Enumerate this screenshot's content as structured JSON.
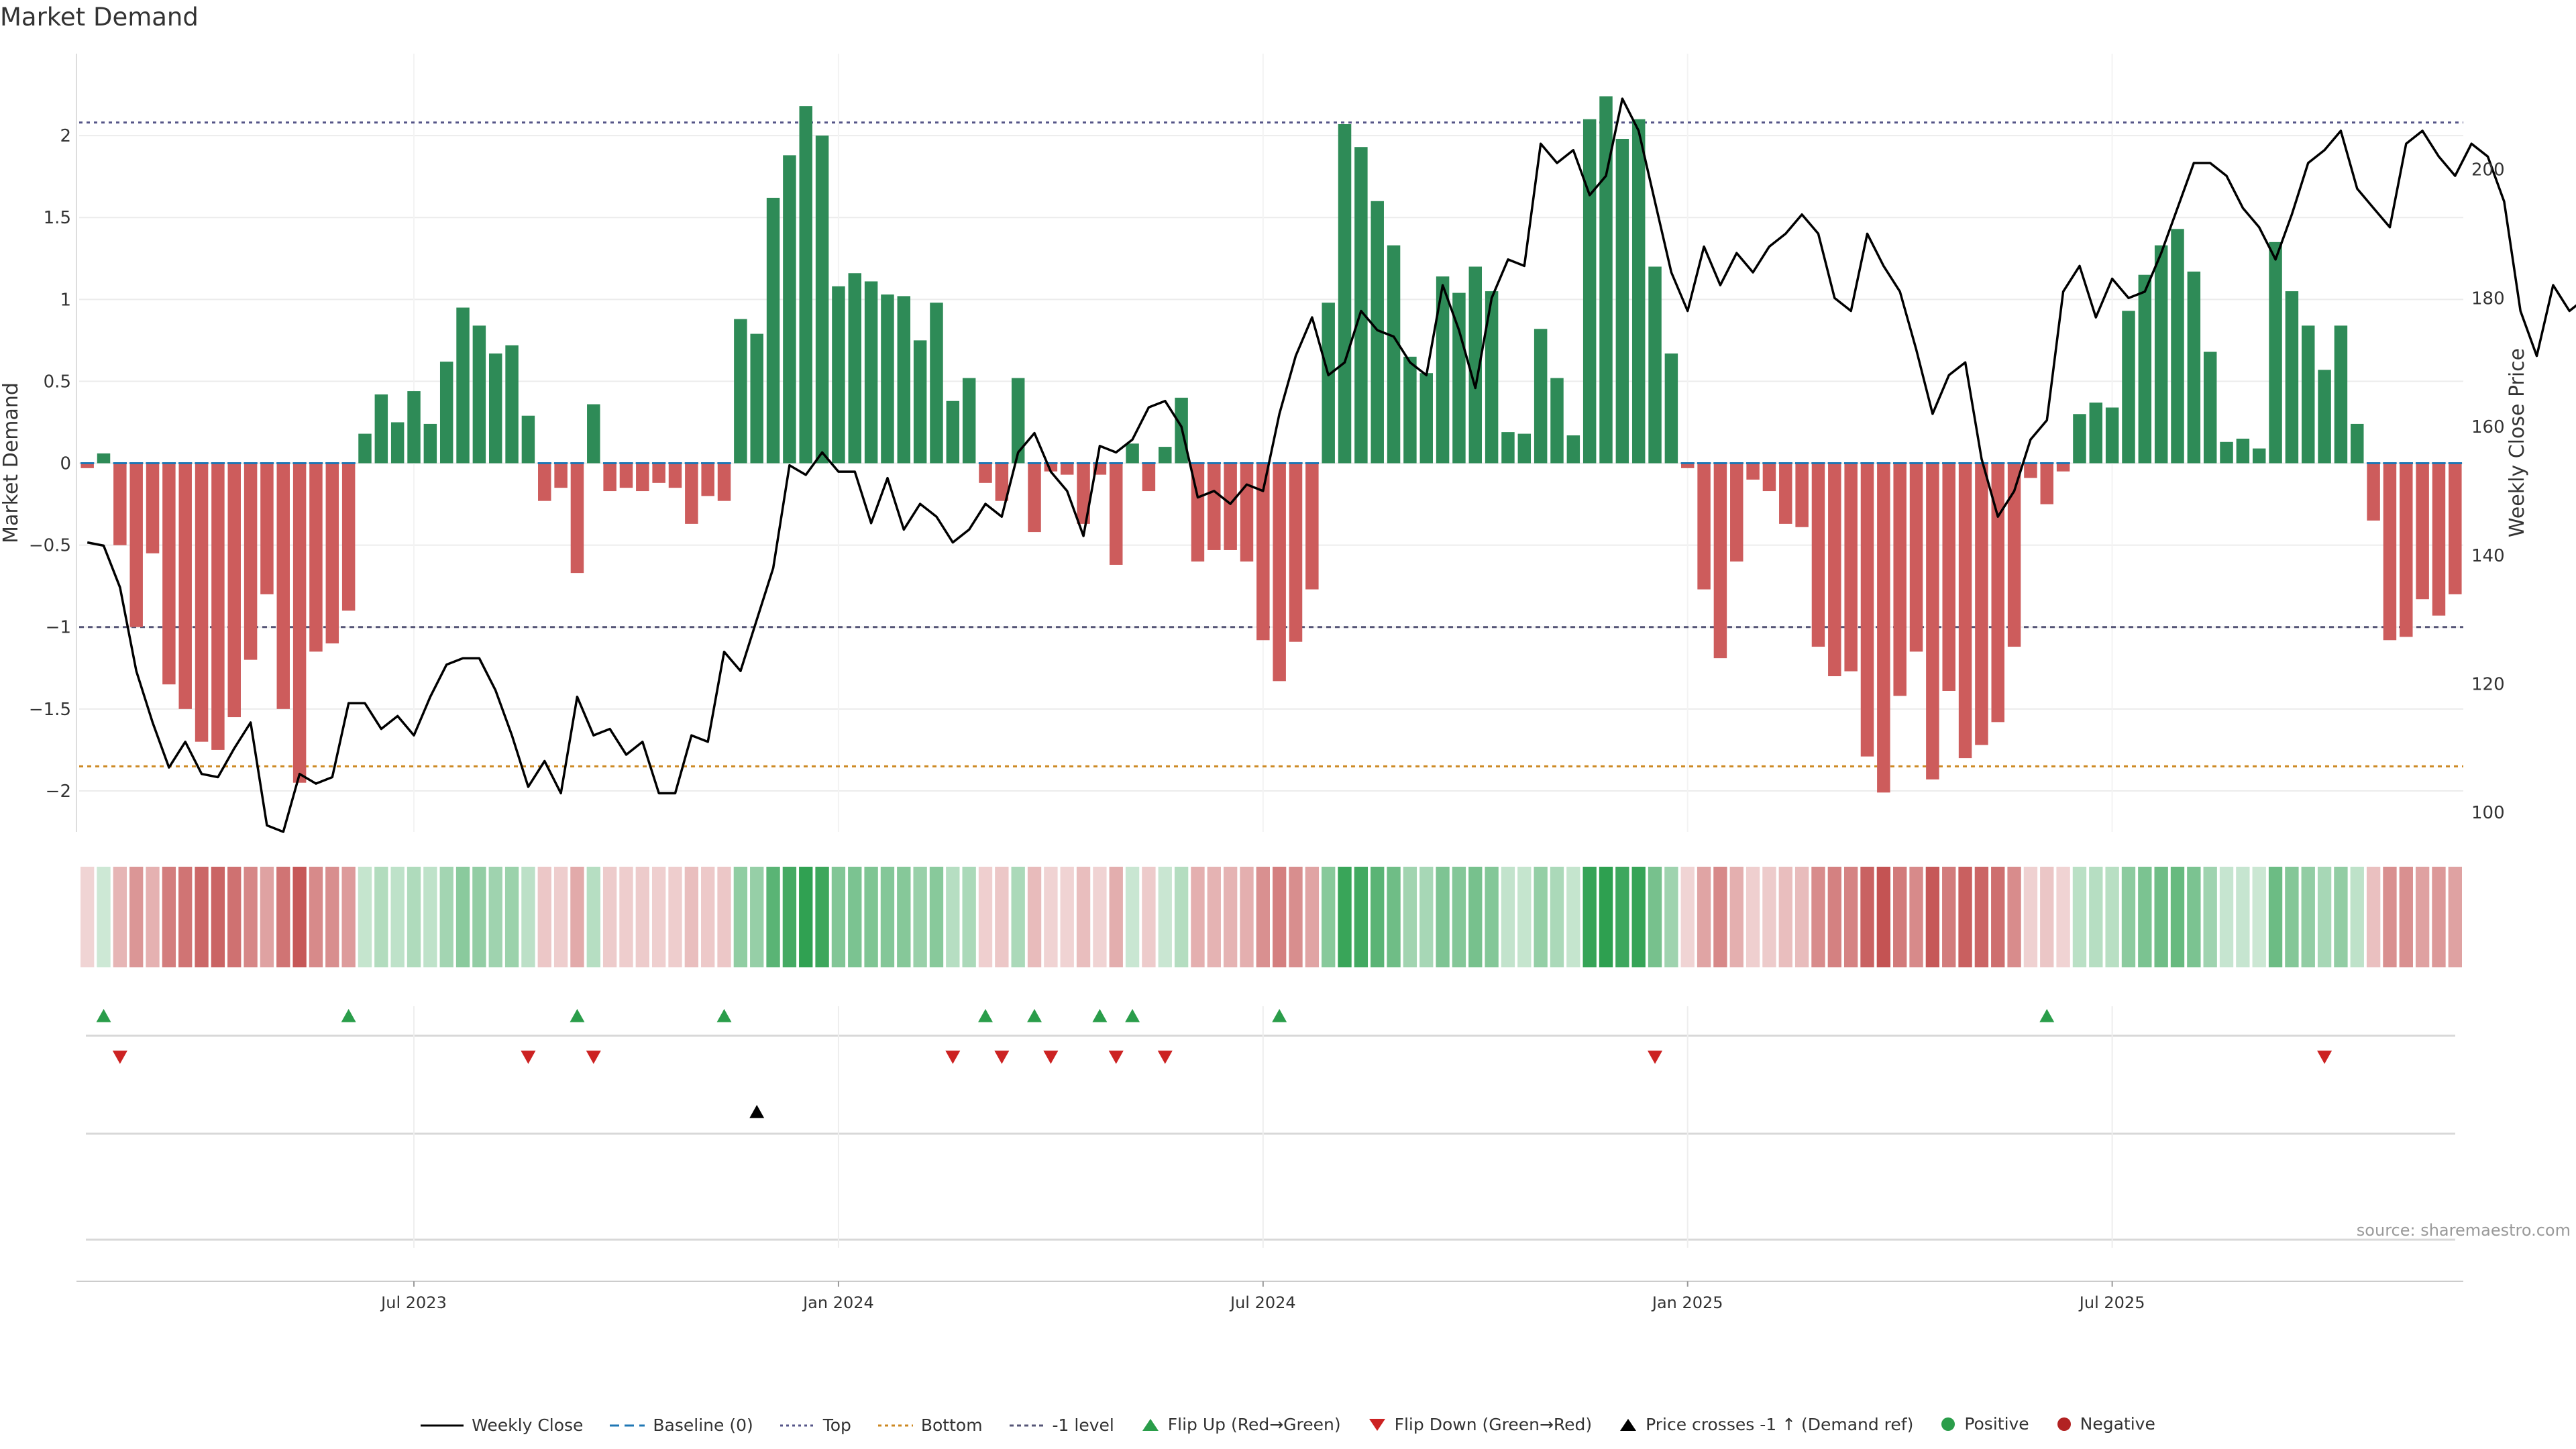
{
  "chart_data": {
    "type": "bar",
    "title": "Market Demand",
    "ylabel": "Market Demand",
    "y2label": "Weekly Close Price",
    "ylim": [
      -2.25,
      2.5
    ],
    "y2lim": [
      97,
      218
    ],
    "yticks": [
      {
        "v": 2,
        "t": "2"
      },
      {
        "v": 1.5,
        "t": "1.5"
      },
      {
        "v": 1,
        "t": "1"
      },
      {
        "v": 0.5,
        "t": "0.5"
      },
      {
        "v": 0,
        "t": "0"
      },
      {
        "v": -0.5,
        "t": "−0.5"
      },
      {
        "v": -1,
        "t": "−1"
      },
      {
        "v": -1.5,
        "t": "−1.5"
      },
      {
        "v": -2,
        "t": "−2"
      }
    ],
    "y2ticks": [
      {
        "v": 200,
        "t": "200"
      },
      {
        "v": 180,
        "t": "180"
      },
      {
        "v": 160,
        "t": "160"
      },
      {
        "v": 140,
        "t": "140"
      },
      {
        "v": 120,
        "t": "120"
      },
      {
        "v": 100,
        "t": "100"
      }
    ],
    "levels": {
      "top": 2.08,
      "bottom": -1.85,
      "minus_one": -1
    },
    "xticks": [
      {
        "i": 20.5,
        "t": "Jul 2023"
      },
      {
        "i": 46.5,
        "t": "Jan 2024"
      },
      {
        "i": 72.5,
        "t": "Jul 2024"
      },
      {
        "i": 98.5,
        "t": "Jan 2025"
      },
      {
        "i": 124.5,
        "t": "Jul 2025"
      }
    ],
    "demand": [
      -0.03,
      0.06,
      -0.5,
      -1,
      -0.55,
      -1.35,
      -1.5,
      -1.7,
      -1.75,
      -1.55,
      -1.2,
      -0.8,
      -1.5,
      -1.95,
      -1.15,
      -1.1,
      -0.9,
      0.18,
      0.42,
      0.25,
      0.44,
      0.24,
      0.62,
      0.95,
      0.84,
      0.67,
      0.72,
      0.29,
      -0.23,
      -0.15,
      -0.67,
      0.36,
      -0.17,
      -0.15,
      -0.17,
      -0.12,
      -0.15,
      -0.37,
      -0.2,
      -0.23,
      0.88,
      0.79,
      1.62,
      1.88,
      2.18,
      2.0,
      1.08,
      1.16,
      1.11,
      1.03,
      1.02,
      0.75,
      0.98,
      0.38,
      0.52,
      -0.12,
      -0.23,
      0.52,
      -0.42,
      -0.05,
      -0.07,
      -0.37,
      -0.07,
      -0.62,
      0.12,
      -0.17,
      0.1,
      0.4,
      -0.6,
      -0.53,
      -0.53,
      -0.6,
      -1.08,
      -1.33,
      -1.09,
      -0.77,
      0.98,
      2.07,
      1.93,
      1.6,
      1.33,
      0.65,
      0.55,
      1.14,
      1.04,
      1.2,
      1.05,
      0.19,
      0.18,
      0.82,
      0.52,
      0.17,
      2.1,
      2.24,
      1.98,
      2.1,
      1.2,
      0.67,
      -0.03,
      -0.77,
      -1.19,
      -0.6,
      -0.1,
      -0.17,
      -0.37,
      -0.39,
      -1.12,
      -1.3,
      -1.27,
      -1.79,
      -2.01,
      -1.42,
      -1.15,
      -1.93,
      -1.39,
      -1.8,
      -1.72,
      -1.58,
      -1.12,
      -0.09,
      -0.25,
      -0.05,
      0.3,
      0.37,
      0.34,
      0.93,
      1.15,
      1.33,
      1.43,
      1.17,
      0.68,
      0.13,
      0.15,
      0.09,
      1.35,
      1.05,
      0.84,
      0.57,
      0.84,
      0.24,
      -0.35,
      -1.08,
      -1.06,
      -0.83,
      -0.93,
      -0.8
    ],
    "price": [
      142,
      141.5,
      135,
      122,
      114,
      107,
      111,
      106,
      105.5,
      110,
      114,
      98,
      97,
      106,
      104.5,
      105.5,
      117,
      117,
      113,
      115,
      112,
      118,
      123,
      124,
      124,
      119,
      112,
      104,
      108,
      103,
      118,
      112,
      113,
      109,
      111,
      103,
      103,
      112,
      111,
      125,
      122,
      130,
      138,
      154,
      152.5,
      156,
      153,
      153,
      145,
      152,
      144,
      148,
      146,
      142,
      144,
      148,
      146,
      156,
      159,
      153,
      150,
      143,
      157,
      156,
      158,
      163,
      164,
      160,
      149,
      150,
      148,
      151,
      150,
      162,
      171,
      177,
      168,
      170,
      178,
      175,
      174,
      170,
      168,
      182,
      175,
      166,
      180,
      186,
      185,
      204,
      201,
      203,
      196,
      199,
      211,
      206,
      195,
      184,
      178,
      188,
      182,
      187,
      184,
      188,
      190,
      193,
      190,
      180,
      178,
      190,
      185,
      181,
      172,
      162,
      168,
      170,
      155,
      146,
      150,
      158,
      161,
      181,
      185,
      177,
      183,
      180,
      181,
      187,
      194,
      201,
      201,
      199,
      194,
      191,
      186,
      193,
      201,
      203,
      206,
      197,
      194,
      191,
      204,
      206,
      202,
      199,
      204,
      202,
      195,
      178,
      171,
      182,
      178,
      180
    ],
    "flip_up": [
      1,
      16,
      30,
      39,
      55,
      58,
      62,
      64,
      73,
      120
    ],
    "flip_down": [
      2,
      27,
      31,
      53,
      56,
      59,
      63,
      66,
      96,
      137
    ],
    "cross": [
      41
    ],
    "source": "source: sharemaestro.com"
  },
  "legend": {
    "weekly_close": "Weekly Close",
    "baseline": "Baseline (0)",
    "top": "Top",
    "bottom": "Bottom",
    "minus_one": "-1 level",
    "flip_up": "Flip Up (Red→Green)",
    "flip_down": "Flip Down (Green→Red)",
    "price_cross": "Price crosses -1 ↑ (Demand ref)",
    "positive": "Positive",
    "negative": "Negative"
  },
  "colors": {
    "positive": "#2e8b57",
    "negative": "#cd5c5c",
    "price": "#000000",
    "baseline": "#1f77b4",
    "top": "#555588",
    "bottom": "#cc8822",
    "minus_one": "#555577",
    "flip_up": "#2a9d4a",
    "flip_down": "#cc2222",
    "cross": "#000000",
    "pos_dot": "#2a9d4a",
    "neg_dot": "#b22222"
  }
}
